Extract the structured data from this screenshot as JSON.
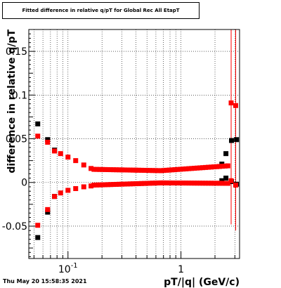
{
  "title": "Fitted difference in relative q/pT for Global Rec All EtapT",
  "timestamp": "Thu May 20 15:58:35 2021",
  "colors": {
    "series_black": "#000000",
    "series_red": "#ff0000",
    "frame": "#000000",
    "grid": "#000000"
  },
  "chart_data": {
    "type": "scatter",
    "title": "Fitted difference in relative q/pT for Global Rec All EtapT",
    "xlabel": "pT/|q| (GeV/c)",
    "ylabel": "difference in relative q/pT",
    "xscale": "log",
    "xlim": [
      0.045,
      3.3
    ],
    "ylim": [
      -0.087,
      0.175
    ],
    "x_major_ticks": [
      {
        "value": 0.1,
        "base": "10",
        "exp": "-1"
      },
      {
        "value": 1,
        "label": "1"
      }
    ],
    "y_ticks": [
      {
        "value": -0.05,
        "label": "-0.05"
      },
      {
        "value": 0,
        "label": "0"
      },
      {
        "value": 0.05,
        "label": "0.05"
      },
      {
        "value": 0.1,
        "label": "0.1"
      },
      {
        "value": 0.15,
        "label": "0.15"
      }
    ],
    "grid": true,
    "series": [
      {
        "marker": "square",
        "color": "#000000",
        "points": [
          {
            "x": 0.054,
            "y": 0.067
          },
          {
            "x": 0.054,
            "y": -0.063
          },
          {
            "x": 0.066,
            "y": 0.049
          },
          {
            "x": 0.066,
            "y": -0.034
          },
          {
            "x": 0.076,
            "y": 0.037
          },
          {
            "x": 0.076,
            "y": -0.016
          },
          {
            "x": 2.3,
            "y": 0.021
          },
          {
            "x": 2.3,
            "y": 0.002
          },
          {
            "x": 2.5,
            "y": 0.033
          },
          {
            "x": 2.5,
            "y": 0.005
          },
          {
            "x": 2.8,
            "y": 0.048
          },
          {
            "x": 2.8,
            "y": 0.001
          },
          {
            "x": 3.1,
            "y": 0.049
          },
          {
            "x": 3.1,
            "y": -0.002
          }
        ]
      },
      {
        "marker": "square",
        "color": "#ff0000",
        "points": [
          {
            "x": 0.054,
            "y": 0.053
          },
          {
            "x": 0.054,
            "y": -0.049
          },
          {
            "x": 0.066,
            "y": 0.046
          },
          {
            "x": 0.066,
            "y": -0.031
          },
          {
            "x": 0.076,
            "y": 0.036
          },
          {
            "x": 0.076,
            "y": -0.016
          },
          {
            "x": 0.086,
            "y": 0.033
          },
          {
            "x": 0.086,
            "y": -0.012
          },
          {
            "x": 0.1,
            "y": 0.029
          },
          {
            "x": 0.1,
            "y": -0.009
          },
          {
            "x": 0.117,
            "y": 0.025
          },
          {
            "x": 0.117,
            "y": -0.007
          },
          {
            "x": 0.138,
            "y": 0.02
          },
          {
            "x": 0.138,
            "y": -0.005
          },
          {
            "x": 0.16,
            "y": 0.016
          },
          {
            "x": 0.16,
            "y": -0.004
          },
          {
            "x": 2.78,
            "y": 0.091
          },
          {
            "x": 2.78,
            "y": 0.002
          },
          {
            "x": 3.05,
            "y": 0.088
          },
          {
            "x": 3.05,
            "y": -0.003
          }
        ],
        "dense_bands": [
          {
            "x_from": 0.17,
            "x_to": 2.6,
            "y_start": 0.015,
            "y_mid": 0.0135,
            "y_end": 0.019
          },
          {
            "x_from": 0.17,
            "x_to": 2.6,
            "y_start": -0.003,
            "y_mid": -0.0005,
            "y_end": -0.001
          }
        ],
        "error_bars": [
          {
            "x": 2.78,
            "y_low": -0.048,
            "y_high": 0.175
          },
          {
            "x": 3.05,
            "y_low": -0.055,
            "y_high": 0.175
          }
        ]
      }
    ]
  }
}
